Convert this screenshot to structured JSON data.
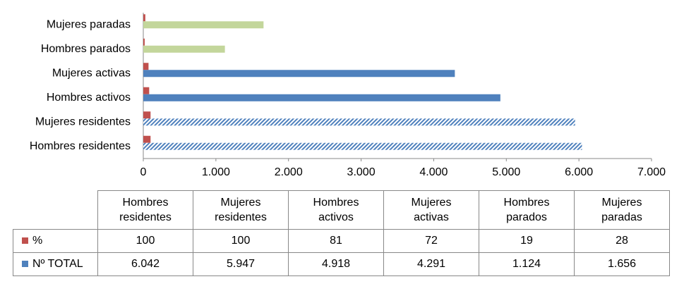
{
  "chart_data": {
    "type": "bar",
    "orientation": "horizontal",
    "categories": [
      "Hombres residentes",
      "Mujeres residentes",
      "Hombres activos",
      "Mujeres activas",
      "Hombres parados",
      "Mujeres paradas"
    ],
    "series": [
      {
        "name": "%",
        "color": "#c0504d",
        "values": [
          100,
          100,
          81,
          72,
          19,
          28
        ]
      },
      {
        "name": "Nº TOTAL",
        "color": "#4f81bd",
        "values": [
          6042,
          5947,
          4918,
          4291,
          1124,
          1656
        ],
        "value_labels": [
          "6.042",
          "5.947",
          "4.918",
          "4.291",
          "1.124",
          "1.656"
        ],
        "bar_colors": [
          "#4f81bd",
          "#4f81bd",
          "#4f81bd",
          "#4f81bd",
          "#c3d69b",
          "#c3d69b"
        ],
        "bar_styles": [
          "hatch",
          "hatch",
          "solid",
          "solid",
          "solid",
          "solid"
        ]
      }
    ],
    "xlim": [
      0,
      7000
    ],
    "xticks": [
      0,
      {
        "value": 1000,
        "label": "1.000"
      },
      {
        "value": 2000,
        "label": "2.000"
      },
      {
        "value": 3000,
        "label": "3.000"
      },
      {
        "value": 4000,
        "label": "4.000"
      },
      {
        "value": 5000,
        "label": "5.000"
      },
      {
        "value": 6000,
        "label": "6.000"
      },
      {
        "value": 7000,
        "label": "7.000"
      }
    ],
    "grid": false,
    "data_table": true
  }
}
